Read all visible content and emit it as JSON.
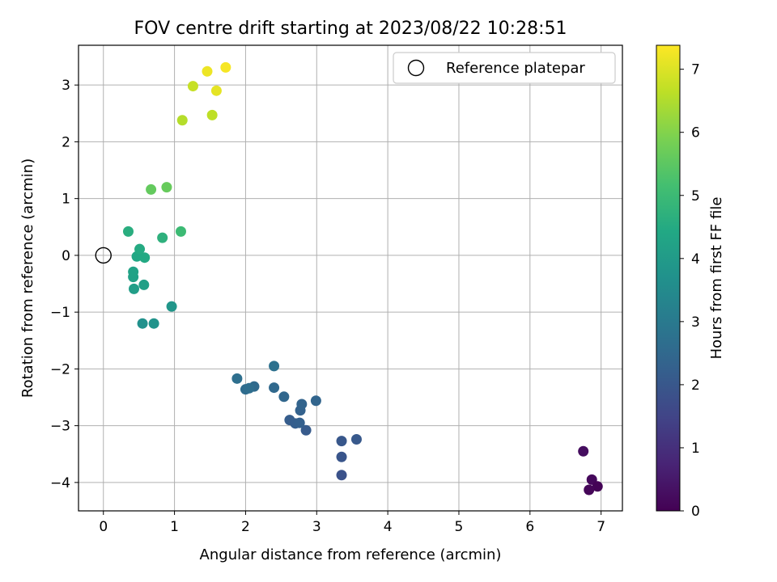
{
  "chart_data": {
    "type": "scatter",
    "title": "FOV centre drift starting at 2023/08/22 10:28:51",
    "xlabel": "Angular distance from reference (arcmin)",
    "ylabel": "Rotation from reference (arcmin)",
    "xlim": [
      -0.35,
      7.3
    ],
    "ylim": [
      -4.5,
      3.7
    ],
    "xticks": [
      "0",
      "1",
      "2",
      "3",
      "4",
      "5",
      "6",
      "7"
    ],
    "yticks": [
      "−4",
      "−3",
      "−2",
      "−1",
      "0",
      "1",
      "2",
      "3"
    ],
    "grid": true,
    "legend": {
      "placement": "top-right",
      "entries": [
        "Reference platepar"
      ]
    },
    "reference_point": {
      "x": 0,
      "y": 0,
      "label": "Reference platepar"
    },
    "colorbar": {
      "label": "Hours from first FF file",
      "min": 0,
      "max": 7.38,
      "ticks": [
        "0",
        "1",
        "2",
        "3",
        "4",
        "5",
        "6",
        "7"
      ],
      "colormap": "viridis"
    },
    "points": [
      {
        "x": 6.75,
        "y": -3.45,
        "h": 0.25
      },
      {
        "x": 6.87,
        "y": -3.95,
        "h": 0.15
      },
      {
        "x": 6.95,
        "y": -4.07,
        "h": 0.05
      },
      {
        "x": 6.83,
        "y": -4.13,
        "h": 0.1
      },
      {
        "x": 3.35,
        "y": -3.87,
        "h": 1.85
      },
      {
        "x": 3.35,
        "y": -3.55,
        "h": 1.95
      },
      {
        "x": 3.35,
        "y": -3.27,
        "h": 2.0
      },
      {
        "x": 3.56,
        "y": -3.24,
        "h": 2.05
      },
      {
        "x": 2.85,
        "y": -3.08,
        "h": 2.1
      },
      {
        "x": 2.62,
        "y": -2.9,
        "h": 2.15
      },
      {
        "x": 2.7,
        "y": -2.96,
        "h": 2.2
      },
      {
        "x": 2.76,
        "y": -2.95,
        "h": 2.25
      },
      {
        "x": 2.77,
        "y": -2.73,
        "h": 2.3
      },
      {
        "x": 2.79,
        "y": -2.62,
        "h": 2.35
      },
      {
        "x": 2.99,
        "y": -2.56,
        "h": 2.4
      },
      {
        "x": 2.54,
        "y": -2.49,
        "h": 2.45
      },
      {
        "x": 2.4,
        "y": -2.33,
        "h": 2.5
      },
      {
        "x": 2.12,
        "y": -2.31,
        "h": 2.55
      },
      {
        "x": 2.0,
        "y": -2.36,
        "h": 2.6
      },
      {
        "x": 2.05,
        "y": -2.34,
        "h": 2.65
      },
      {
        "x": 1.88,
        "y": -2.17,
        "h": 2.7
      },
      {
        "x": 2.4,
        "y": -1.95,
        "h": 2.75
      },
      {
        "x": 0.55,
        "y": -1.2,
        "h": 3.7
      },
      {
        "x": 0.71,
        "y": -1.2,
        "h": 3.75
      },
      {
        "x": 0.96,
        "y": -0.9,
        "h": 3.85
      },
      {
        "x": 0.43,
        "y": -0.59,
        "h": 4.1
      },
      {
        "x": 0.57,
        "y": -0.52,
        "h": 4.15
      },
      {
        "x": 0.42,
        "y": -0.38,
        "h": 4.2
      },
      {
        "x": 0.42,
        "y": -0.29,
        "h": 4.25
      },
      {
        "x": 0.47,
        "y": -0.02,
        "h": 4.4
      },
      {
        "x": 0.58,
        "y": -0.04,
        "h": 4.45
      },
      {
        "x": 0.51,
        "y": 0.11,
        "h": 4.5
      },
      {
        "x": 0.35,
        "y": 0.42,
        "h": 4.6
      },
      {
        "x": 0.83,
        "y": 0.31,
        "h": 4.7
      },
      {
        "x": 1.09,
        "y": 0.42,
        "h": 5.0
      },
      {
        "x": 0.67,
        "y": 1.16,
        "h": 5.6
      },
      {
        "x": 0.89,
        "y": 1.2,
        "h": 5.65
      },
      {
        "x": 1.11,
        "y": 2.38,
        "h": 6.55
      },
      {
        "x": 1.53,
        "y": 2.47,
        "h": 6.65
      },
      {
        "x": 1.26,
        "y": 2.98,
        "h": 6.75
      },
      {
        "x": 1.59,
        "y": 2.9,
        "h": 7.1
      },
      {
        "x": 1.46,
        "y": 3.24,
        "h": 7.2
      },
      {
        "x": 1.72,
        "y": 3.31,
        "h": 7.3
      }
    ]
  }
}
